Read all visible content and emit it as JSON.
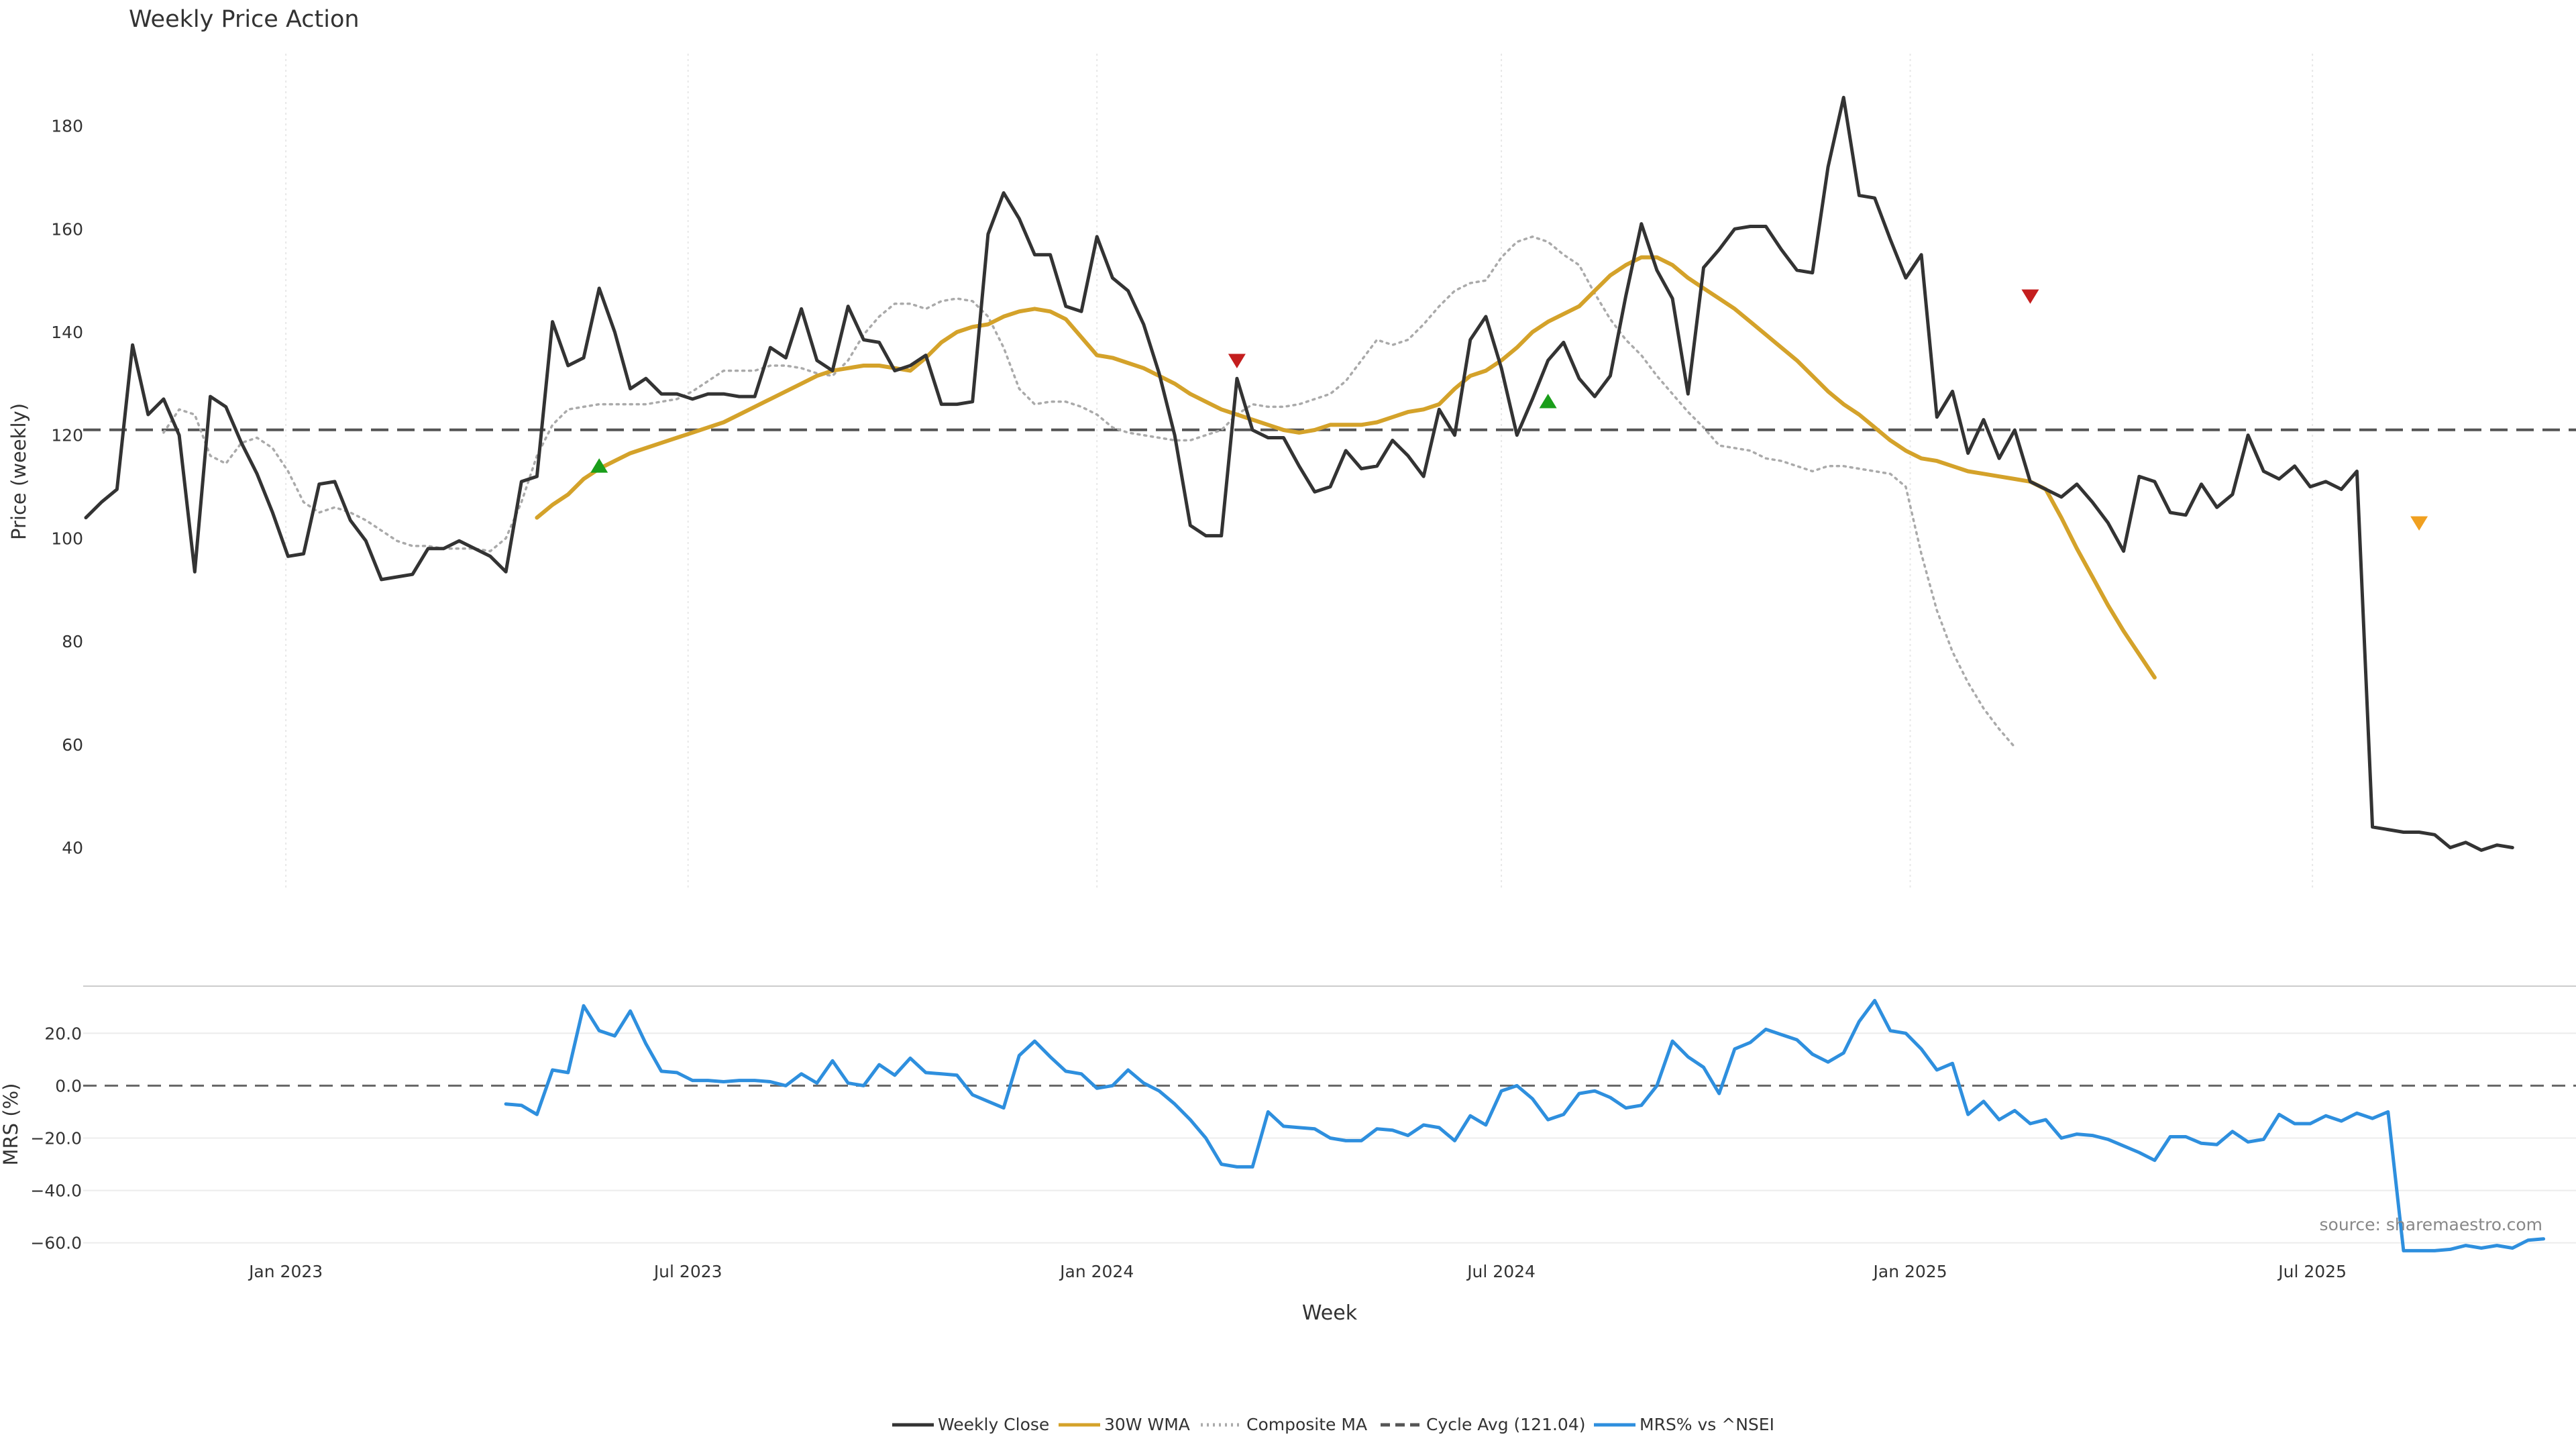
{
  "chart_data": [
    {
      "type": "line",
      "panel": "price",
      "title": "Weekly Price Action",
      "ylabel": "Price (weekly)",
      "xlabel": "",
      "ylim": [
        32,
        194
      ],
      "yticks": [
        40,
        60,
        80,
        100,
        120,
        140,
        160,
        180
      ],
      "grid": "vertical dotted lines at month ticks",
      "reference_line": {
        "name": "Cycle Avg (121.04)",
        "value": 121.04,
        "style": "dashed"
      },
      "series": [
        {
          "name": "Weekly Close",
          "color": "#333333",
          "start_date": "2022-10-03",
          "values": [
            104,
            107,
            109.5,
            137.5,
            124,
            127,
            120,
            93.5,
            127.5,
            125.5,
            118.5,
            112.5,
            105,
            96.5,
            97,
            110.5,
            111,
            103.5,
            99.5,
            92,
            92.5,
            93,
            98,
            98,
            99.5,
            98,
            96.5,
            93.5,
            111,
            112,
            142,
            133.5,
            135,
            148.5,
            140,
            129,
            131,
            128,
            128,
            127,
            128,
            128,
            127.5,
            127.5,
            137,
            135,
            144.5,
            134.5,
            132.5,
            145,
            138.5,
            138,
            132.5,
            133.5,
            135.5,
            126,
            126,
            126.5,
            159,
            167,
            162,
            155,
            155,
            145,
            144,
            158.5,
            150.5,
            148,
            141.5,
            132,
            120,
            102.5,
            100.5,
            100.5,
            131,
            121,
            119.5,
            119.5,
            114,
            109,
            110,
            117,
            113.5,
            114,
            119,
            116,
            112,
            125,
            120,
            138.5,
            143,
            133,
            120,
            127,
            134.5,
            138,
            131,
            127.5,
            131.5,
            147,
            161,
            152,
            146.5,
            128,
            152.5,
            156,
            160,
            160.5,
            160.5,
            156,
            152,
            151.5,
            172,
            185.5,
            166.5,
            166,
            158,
            150.5,
            155,
            123.5,
            128.5,
            116.5,
            123,
            115.5,
            121,
            111,
            109.5,
            108,
            110.5,
            107,
            103,
            97.5,
            112,
            111,
            105,
            104.5,
            110.5,
            106,
            108.5,
            120,
            113,
            111.5,
            114,
            110,
            111,
            109.5,
            113,
            44,
            43.5,
            43,
            43,
            42.5,
            40,
            41,
            39.5,
            40.5,
            40
          ]
        },
        {
          "name": "30W WMA",
          "color": "#D4A22A",
          "start_date": "2023-04-24",
          "values": [
            104,
            106.5,
            108.5,
            111.5,
            113.5,
            115,
            116.5,
            117.5,
            118.5,
            119.5,
            120.5,
            121.5,
            122.5,
            124,
            125.5,
            127,
            128.5,
            130,
            131.5,
            132.5,
            133,
            133.5,
            133.5,
            133,
            132.5,
            135,
            138,
            140,
            141,
            141.5,
            143,
            144,
            144.5,
            144,
            142.5,
            139,
            135.5,
            135,
            134,
            133,
            131.5,
            130,
            128,
            126.5,
            125,
            124,
            123,
            122,
            121,
            120.5,
            121,
            122,
            122,
            122,
            122.5,
            123.5,
            124.5,
            125,
            126,
            129,
            131.5,
            132.5,
            134.5,
            137,
            140,
            142,
            143.5,
            145,
            148,
            151,
            153,
            154.5,
            154.5,
            153,
            150.5,
            148.5,
            146.5,
            144.5,
            142,
            139.5,
            137,
            134.5,
            131.5,
            128.5,
            126,
            124,
            121.5,
            119,
            117,
            115.5,
            115,
            114,
            113,
            112.5,
            112,
            111.5,
            111,
            109.5,
            104,
            98,
            92.5,
            87,
            82,
            77.5,
            73
          ]
        },
        {
          "name": "Composite MA",
          "color": "#aaaaaa",
          "start_date": "2022-11-07",
          "values": [
            120.5,
            125,
            124,
            116,
            114.5,
            118.5,
            119.5,
            117.5,
            113,
            107,
            105,
            106,
            105,
            103.5,
            101.5,
            99.5,
            98.5,
            98.5,
            98,
            98,
            98,
            97.5,
            100,
            107,
            116,
            122,
            125,
            125.5,
            126,
            126,
            126,
            126,
            126.5,
            127,
            128.5,
            130.5,
            132.5,
            132.5,
            132.5,
            133.5,
            133.5,
            133,
            132,
            131.5,
            134.5,
            139.5,
            143,
            145.5,
            145.5,
            144.5,
            146,
            146.5,
            146,
            143,
            137,
            129,
            126,
            126.5,
            126.5,
            125.5,
            124,
            121.5,
            120.5,
            120,
            119.5,
            119,
            119,
            120,
            121,
            124,
            126,
            125.5,
            125.5,
            126,
            127,
            128,
            130.5,
            134.5,
            138.5,
            137.5,
            138.5,
            141.5,
            145,
            148,
            149.5,
            150,
            154.5,
            157.5,
            158.5,
            157.5,
            155,
            153,
            147.5,
            142.5,
            138.5,
            135.5,
            131.5,
            128,
            124.5,
            121.5,
            118,
            117.5,
            117,
            115.5,
            115,
            114,
            113,
            114,
            114,
            113.5,
            113,
            112.5,
            110,
            97,
            86,
            78,
            72,
            67,
            63,
            59.5
          ]
        }
      ],
      "markers": [
        {
          "date": "2023-05-22",
          "value": 114,
          "kind": "up",
          "color": "#1a9e1a"
        },
        {
          "date": "2024-03-04",
          "value": 134.5,
          "kind": "down",
          "color": "#c41e1e"
        },
        {
          "date": "2024-07-22",
          "value": 126.5,
          "kind": "up",
          "color": "#1a9e1a"
        },
        {
          "date": "2025-02-24",
          "value": 147,
          "kind": "down",
          "color": "#c41e1e"
        },
        {
          "date": "2025-08-18",
          "value": 103,
          "kind": "down",
          "color": "#f0a020"
        }
      ]
    },
    {
      "type": "line",
      "panel": "mrs",
      "title": "",
      "ylabel": "MRS (%)",
      "xlabel": "Week",
      "ylim": [
        -67,
        38
      ],
      "yticks": [
        -60,
        -40,
        -20,
        0,
        20
      ],
      "ytick_labels": [
        "−60.0",
        "−40.0",
        "−20.0",
        "0.0",
        "20.0"
      ],
      "reference_line": {
        "value": 0,
        "style": "dashed"
      },
      "series": [
        {
          "name": "MRS% vs ^NSEI",
          "color": "#2E8FDE",
          "start_date": "2023-04-10",
          "values": [
            -7,
            -7.5,
            -11,
            6,
            5,
            30.5,
            21,
            19,
            28.5,
            16,
            5.5,
            5,
            2,
            2,
            1.5,
            2,
            2,
            1.5,
            0,
            4.5,
            1,
            9.5,
            1,
            0,
            8,
            4,
            10.5,
            5,
            4.5,
            4,
            -3.5,
            -6,
            -8.5,
            11.5,
            17,
            11,
            5.5,
            4.5,
            -1,
            0,
            6,
            1,
            -2,
            -7,
            -13,
            -20,
            -30,
            -31,
            -31,
            -10,
            -15.5,
            -16,
            -16.5,
            -20,
            -21,
            -21,
            -16.5,
            -17,
            -19,
            -15,
            -16,
            -21,
            -11.5,
            -15,
            -2,
            0,
            -5,
            -13,
            -11,
            -3,
            -2,
            -4.5,
            -8.5,
            -7.5,
            0,
            17,
            11,
            7,
            -3,
            14,
            16.5,
            21.5,
            19.5,
            17.5,
            12,
            9,
            12.5,
            24.5,
            32.5,
            21,
            20,
            14,
            6,
            8.5,
            -11,
            -6,
            -13,
            -9.5,
            -14.5,
            -13,
            -20,
            -18.5,
            -19,
            -20.5,
            -23,
            -25.5,
            -28.5,
            -19.5,
            -19.5,
            -22,
            -22.5,
            -17.5,
            -21.5,
            -20.5,
            -11,
            -14.5,
            -14.5,
            -11.5,
            -13.5,
            -10.5,
            -12.5,
            -10,
            -63,
            -63,
            -63,
            -62.5,
            -61,
            -62,
            -61,
            -62,
            -59,
            -58.5
          ]
        }
      ]
    }
  ],
  "x_axis": {
    "ticks": [
      {
        "date": "2023-01-01",
        "label": "Jan 2023"
      },
      {
        "date": "2023-07-01",
        "label": "Jul 2023"
      },
      {
        "date": "2024-01-01",
        "label": "Jan 2024"
      },
      {
        "date": "2024-07-01",
        "label": "Jul 2024"
      },
      {
        "date": "2025-01-01",
        "label": "Jan 2025"
      },
      {
        "date": "2025-07-01",
        "label": "Jul 2025"
      }
    ],
    "range": [
      "2022-10-03",
      "2025-10-27"
    ]
  },
  "legend": {
    "placement": "bottom-center",
    "items": [
      {
        "label": "Weekly Close",
        "color": "#333333",
        "style": "solid"
      },
      {
        "label": "30W WMA",
        "color": "#D4A22A",
        "style": "solid"
      },
      {
        "label": "Composite MA",
        "color": "#aaaaaa",
        "style": "dotted"
      },
      {
        "label": "Cycle Avg (121.04)",
        "color": "#555555",
        "style": "dashed"
      },
      {
        "label": "MRS% vs ^NSEI",
        "color": "#2E8FDE",
        "style": "solid"
      }
    ]
  },
  "watermark": "source: sharemaestro.com"
}
